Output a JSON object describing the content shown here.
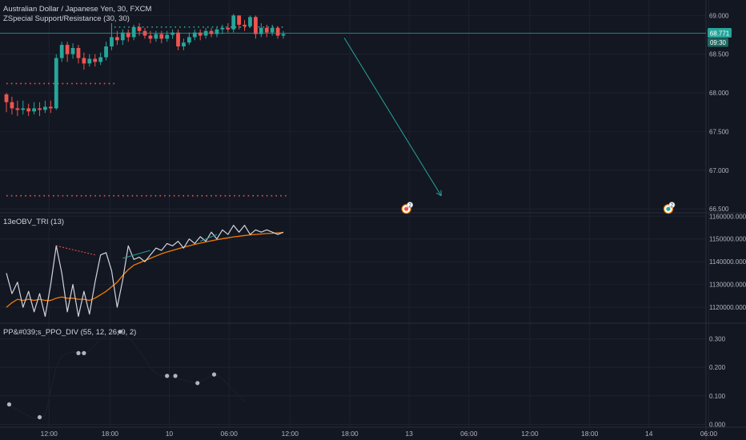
{
  "colors": {
    "background": "#131722",
    "grid": "#1e2230",
    "separator": "#2a2e39",
    "axis_text": "#b2b5be",
    "up": "#26a69a",
    "down": "#ef5350",
    "price_line": "#26a69a",
    "support_level": "#ef5350",
    "resistance_level": "#26a69a",
    "arrow": "#26a69a",
    "obv_line": "#d1d4dc",
    "obv_signal": "#f57c00",
    "ppo_line": "#2a2e39",
    "ppo_dot": "#b2b5be"
  },
  "main": {
    "title": "Australian Dollar / Japanese Yen, 30, FXCM",
    "indicator": "ZSpecial Support/Resistance (30, 30)",
    "price_tag": "68.771",
    "countdown_tag": "09:30",
    "markers": [
      {
        "label": "2",
        "kind": "red",
        "x_index": 72.2,
        "y": 66.5
      },
      {
        "label": "2",
        "kind": "teal",
        "x_index": 119.5,
        "y": 66.5
      }
    ]
  },
  "obv": {
    "title": "13eOBV_TRI (13)"
  },
  "ppo": {
    "title": "PP&#039;s_PPO_DIV (55, 12, 26, 9, 2)"
  },
  "time_axis": {
    "labels": [
      "12:00",
      "18:00",
      "10",
      "06:00",
      "12:00",
      "18:00",
      "13",
      "06:00",
      "12:00",
      "18:00",
      "14",
      "06:00"
    ],
    "positions": [
      7.7,
      18.7,
      29.4,
      40.2,
      51.2,
      62.0,
      72.7,
      83.5,
      94.5,
      105.3,
      116.0,
      126.8
    ]
  },
  "chart_data": [
    {
      "type": "candlestick",
      "title": "Australian Dollar / Japanese Yen, 30, FXCM",
      "y_ticks": [
        "69.000",
        "68.500",
        "68.000",
        "67.500",
        "67.000",
        "66.500"
      ],
      "y_tick_values": [
        69.0,
        68.5,
        68.0,
        67.5,
        67.0,
        66.5
      ],
      "ylim": [
        66.45,
        69.2
      ],
      "last_price": 68.771,
      "candles": [
        [
          67.98,
          67.88,
          68.0,
          67.75
        ],
        [
          67.88,
          67.8,
          67.95,
          67.72
        ],
        [
          67.8,
          67.78,
          67.9,
          67.7
        ],
        [
          67.78,
          67.8,
          67.9,
          67.72
        ],
        [
          67.8,
          67.76,
          67.86,
          67.7
        ],
        [
          67.76,
          67.8,
          67.88,
          67.72
        ],
        [
          67.8,
          67.78,
          67.88,
          67.7
        ],
        [
          67.78,
          67.82,
          67.9,
          67.74
        ],
        [
          67.82,
          67.8,
          67.9,
          67.74
        ],
        [
          67.8,
          68.45,
          68.5,
          67.78
        ],
        [
          68.45,
          68.62,
          68.66,
          68.4
        ],
        [
          68.62,
          68.5,
          68.66,
          68.4
        ],
        [
          68.5,
          68.58,
          68.64,
          68.44
        ],
        [
          68.58,
          68.45,
          68.62,
          68.38
        ],
        [
          68.45,
          68.38,
          68.52,
          68.3
        ],
        [
          68.38,
          68.44,
          68.5,
          68.34
        ],
        [
          68.44,
          68.4,
          68.5,
          68.34
        ],
        [
          68.4,
          68.46,
          68.52,
          68.36
        ],
        [
          68.46,
          68.6,
          68.66,
          68.42
        ],
        [
          68.6,
          68.72,
          68.9,
          68.55
        ],
        [
          68.72,
          68.68,
          68.8,
          68.62
        ],
        [
          68.68,
          68.78,
          68.82,
          68.62
        ],
        [
          68.78,
          68.72,
          68.82,
          68.66
        ],
        [
          68.72,
          68.85,
          68.88,
          68.68
        ],
        [
          68.85,
          68.8,
          68.9,
          68.74
        ],
        [
          68.8,
          68.74,
          68.84,
          68.7
        ],
        [
          68.74,
          68.7,
          68.8,
          68.64
        ],
        [
          68.7,
          68.76,
          68.8,
          68.66
        ],
        [
          68.76,
          68.7,
          68.8,
          68.64
        ],
        [
          68.7,
          68.75,
          68.8,
          68.66
        ],
        [
          68.75,
          68.78,
          68.82,
          68.7
        ],
        [
          68.78,
          68.6,
          68.82,
          68.55
        ],
        [
          68.6,
          68.65,
          68.7,
          68.55
        ],
        [
          68.65,
          68.72,
          68.78,
          68.62
        ],
        [
          68.72,
          68.78,
          68.82,
          68.68
        ],
        [
          68.78,
          68.74,
          68.82,
          68.68
        ],
        [
          68.74,
          68.8,
          68.84,
          68.7
        ],
        [
          68.8,
          68.76,
          68.84,
          68.72
        ],
        [
          68.76,
          68.82,
          68.86,
          68.72
        ],
        [
          68.82,
          68.84,
          68.88,
          68.76
        ],
        [
          68.84,
          68.82,
          68.9,
          68.78
        ],
        [
          68.82,
          69.0,
          69.02,
          68.78
        ],
        [
          69.0,
          68.88,
          69.0,
          68.82
        ],
        [
          68.88,
          68.86,
          68.94,
          68.8
        ],
        [
          68.86,
          68.98,
          69.0,
          68.84
        ],
        [
          68.98,
          68.76,
          69.0,
          68.7
        ],
        [
          68.76,
          68.84,
          68.9,
          68.72
        ],
        [
          68.84,
          68.78,
          68.88,
          68.72
        ],
        [
          68.78,
          68.84,
          68.88,
          68.74
        ],
        [
          68.84,
          68.74,
          68.86,
          68.7
        ],
        [
          68.74,
          68.76,
          68.8,
          68.7
        ]
      ],
      "levels": [
        {
          "kind": "resistance",
          "y": 68.85,
          "x_start": 19.5,
          "x_end": 50.5
        },
        {
          "kind": "support",
          "y": 68.12,
          "x_start": 0,
          "x_end": 19.5
        },
        {
          "kind": "support",
          "y": 66.67,
          "x_start": 0,
          "x_end": 50.5
        }
      ],
      "arrow": {
        "from": [
          61.0,
          68.71
        ],
        "to": [
          78.5,
          66.67
        ]
      }
    },
    {
      "type": "line",
      "title": "13eOBV_TRI (13)",
      "y_ticks": [
        "1160000.000",
        "1150000.000",
        "1140000.000",
        "1130000.000",
        "1120000.000"
      ],
      "y_tick_values": [
        1160000,
        1150000,
        1140000,
        1130000,
        1120000
      ],
      "ylim": [
        1113000,
        1161500
      ],
      "series": [
        {
          "key": "obv",
          "x": [
            0,
            1,
            2,
            3,
            4,
            5,
            6,
            7,
            8,
            9,
            10,
            11,
            12,
            13,
            14,
            15,
            16,
            17,
            18,
            19,
            20,
            21,
            22,
            23,
            24,
            25,
            26,
            27,
            28,
            29,
            30,
            31,
            32,
            33,
            34,
            35,
            36,
            37,
            38,
            39,
            40,
            41,
            42,
            43,
            44,
            45,
            46,
            47,
            48,
            49,
            50
          ],
          "y": [
            1135000,
            1126000,
            1131000,
            1120000,
            1127000,
            1118000,
            1126000,
            1116000,
            1130000,
            1147000,
            1135000,
            1118000,
            1130000,
            1116000,
            1127000,
            1117000,
            1131000,
            1143000,
            1144000,
            1136000,
            1120000,
            1132000,
            1147000,
            1141000,
            1142000,
            1140000,
            1143000,
            1146000,
            1145000,
            1148000,
            1147000,
            1149000,
            1146000,
            1150000,
            1148000,
            1151000,
            1149000,
            1153000,
            1150000,
            1154000,
            1152000,
            1156000,
            1153000,
            1156000,
            1152000,
            1154000,
            1153000,
            1154000,
            1153000,
            1152000,
            1153000
          ]
        },
        {
          "key": "signal",
          "x": [
            0,
            1,
            2,
            3,
            4,
            5,
            6,
            7,
            8,
            9,
            10,
            11,
            12,
            13,
            14,
            15,
            16,
            17,
            18,
            19,
            20,
            21,
            22,
            23,
            24,
            25,
            26,
            27,
            28,
            29,
            30,
            31,
            32,
            33,
            34,
            35,
            36,
            37,
            38,
            39,
            40,
            41,
            42,
            43,
            44,
            45,
            46,
            47,
            48,
            49,
            50
          ],
          "y": [
            1120000,
            1122000,
            1123500,
            1123000,
            1123500,
            1123000,
            1123500,
            1123000,
            1123000,
            1124000,
            1124500,
            1124000,
            1124000,
            1123500,
            1123500,
            1123000,
            1124000,
            1125500,
            1127000,
            1129000,
            1131000,
            1134000,
            1136500,
            1138500,
            1139500,
            1140500,
            1141500,
            1142500,
            1143500,
            1144300,
            1145000,
            1145700,
            1146400,
            1147000,
            1147600,
            1148200,
            1148700,
            1149200,
            1149700,
            1150100,
            1150500,
            1150900,
            1151200,
            1151500,
            1151800,
            1152000,
            1152200,
            1152400,
            1152500,
            1152700,
            1152800
          ]
        }
      ],
      "divergence_lines": [
        {
          "color": "red",
          "from": [
            9,
            1147000
          ],
          "to": [
            16,
            1143000
          ]
        },
        {
          "color": "teal",
          "from": [
            21,
            1141500
          ],
          "to": [
            26,
            1145000
          ]
        },
        {
          "color": "teal",
          "from": [
            35,
            1149000
          ],
          "to": [
            38,
            1152000
          ]
        }
      ]
    },
    {
      "type": "line",
      "title": "PP&#039;s_PPO_DIV (55, 12, 26, 9, 2)",
      "y_ticks": [
        "0.300",
        "0.200",
        "0.100",
        "0.000"
      ],
      "y_tick_values": [
        0.3,
        0.2,
        0.1,
        0.0
      ],
      "ylim": [
        -0.01,
        0.355
      ],
      "series": [
        {
          "key": "ppo",
          "x": [
            0,
            1,
            2,
            3,
            4,
            5,
            6,
            7,
            8,
            9,
            10,
            11,
            12,
            13,
            14,
            15,
            16,
            17,
            18,
            19,
            20,
            21,
            22,
            23,
            24,
            25,
            26,
            27,
            28,
            29,
            30,
            31,
            32,
            33,
            34,
            35,
            36,
            37,
            38,
            39,
            40,
            41,
            42,
            43
          ],
          "y": [
            0.07,
            0.06,
            0.05,
            0.04,
            0.03,
            0.02,
            0.025,
            0.03,
            0.12,
            0.2,
            0.24,
            0.25,
            0.255,
            0.25,
            0.245,
            0.26,
            0.28,
            0.3,
            0.31,
            0.32,
            0.325,
            0.32,
            0.305,
            0.285,
            0.26,
            0.23,
            0.2,
            0.18,
            0.17,
            0.17,
            0.165,
            0.16,
            0.155,
            0.15,
            0.145,
            0.15,
            0.16,
            0.17,
            0.175,
            0.16,
            0.14,
            0.12,
            0.1,
            0.08
          ]
        }
      ],
      "dots": [
        {
          "x": 0.5,
          "y": 0.07
        },
        {
          "x": 6,
          "y": 0.025
        },
        {
          "x": 13,
          "y": 0.25
        },
        {
          "x": 14,
          "y": 0.25
        },
        {
          "x": 20.5,
          "y": 0.325
        },
        {
          "x": 29,
          "y": 0.17
        },
        {
          "x": 30.5,
          "y": 0.17
        },
        {
          "x": 34.5,
          "y": 0.145
        },
        {
          "x": 37.5,
          "y": 0.175
        }
      ]
    }
  ]
}
